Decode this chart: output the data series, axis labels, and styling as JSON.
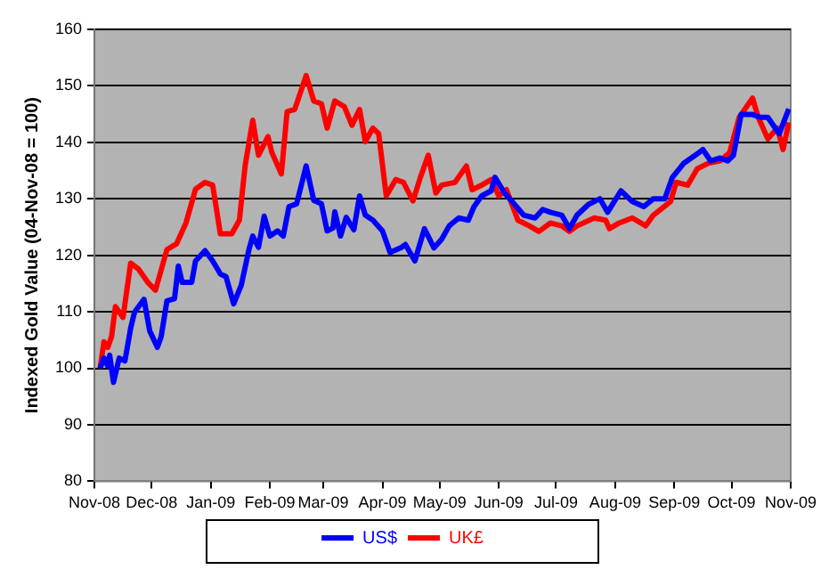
{
  "chart_data": {
    "type": "line",
    "ylabel": "Indexed Gold Value (04-Nov-08 = 100)",
    "xlim": [
      "2008-11-01",
      "2009-11-01"
    ],
    "xticks": [
      {
        "value": "2008-11-01",
        "label": "Nov-08"
      },
      {
        "value": "2008-12-01",
        "label": "Dec-08"
      },
      {
        "value": "2009-01-01",
        "label": "Jan-09"
      },
      {
        "value": "2009-02-01",
        "label": "Feb-09"
      },
      {
        "value": "2009-03-01",
        "label": "Mar-09"
      },
      {
        "value": "2009-04-01",
        "label": "Apr-09"
      },
      {
        "value": "2009-05-01",
        "label": "May-09"
      },
      {
        "value": "2009-06-01",
        "label": "Jun-09"
      },
      {
        "value": "2009-07-01",
        "label": "Jul-09"
      },
      {
        "value": "2009-08-01",
        "label": "Aug-09"
      },
      {
        "value": "2009-09-01",
        "label": "Sep-09"
      },
      {
        "value": "2009-10-01",
        "label": "Oct-09"
      },
      {
        "value": "2009-11-01",
        "label": "Nov-09"
      }
    ],
    "ylim": [
      80,
      160
    ],
    "yticks": [
      80,
      90,
      100,
      110,
      120,
      130,
      140,
      150,
      160
    ],
    "grid": "y",
    "legend": "bottom",
    "marker": "none",
    "line_style": "solid",
    "series": [
      {
        "name": "US$",
        "color": "#0000ff",
        "x": [
          "2008-11-04",
          "2008-11-06",
          "2008-11-08",
          "2008-11-09",
          "2008-11-11",
          "2008-11-14",
          "2008-11-17",
          "2008-11-20",
          "2008-11-22",
          "2008-11-27",
          "2008-11-30",
          "2008-12-04",
          "2008-12-06",
          "2008-12-09",
          "2008-12-13",
          "2008-12-15",
          "2008-12-17",
          "2008-12-22",
          "2008-12-24",
          "2008-12-29",
          "2009-01-02",
          "2009-01-06",
          "2009-01-09",
          "2009-01-13",
          "2009-01-17",
          "2009-01-21",
          "2009-01-23",
          "2009-01-26",
          "2009-01-29",
          "2009-02-01",
          "2009-02-05",
          "2009-02-08",
          "2009-02-11",
          "2009-02-15",
          "2009-02-20",
          "2009-02-24",
          "2009-02-28",
          "2009-03-03",
          "2009-03-06",
          "2009-03-07",
          "2009-03-10",
          "2009-03-13",
          "2009-03-17",
          "2009-03-20",
          "2009-03-23",
          "2009-03-27",
          "2009-04-01",
          "2009-04-05",
          "2009-04-11",
          "2009-04-13",
          "2009-04-18",
          "2009-04-23",
          "2009-04-28",
          "2009-05-02",
          "2009-05-06",
          "2009-05-11",
          "2009-05-16",
          "2009-05-19",
          "2009-05-23",
          "2009-05-28",
          "2009-05-30",
          "2009-06-04",
          "2009-06-08",
          "2009-06-14",
          "2009-06-20",
          "2009-06-24",
          "2009-06-28",
          "2009-07-04",
          "2009-07-08",
          "2009-07-12",
          "2009-07-18",
          "2009-07-24",
          "2009-07-28",
          "2009-08-04",
          "2009-08-10",
          "2009-08-16",
          "2009-08-21",
          "2009-08-27",
          "2009-08-31",
          "2009-09-06",
          "2009-09-12",
          "2009-09-16",
          "2009-09-20",
          "2009-09-25",
          "2009-09-29",
          "2009-10-02",
          "2009-10-06",
          "2009-10-12",
          "2009-10-16",
          "2009-10-20",
          "2009-10-26",
          "2009-10-31"
        ],
        "values": [
          100,
          101.8,
          100.4,
          102.3,
          97.5,
          101.8,
          101.3,
          107.1,
          109.9,
          112.2,
          106.6,
          103.7,
          105.6,
          111.9,
          112.3,
          118.1,
          115.2,
          115.2,
          119,
          120.8,
          119,
          116.7,
          116.2,
          111.4,
          114.7,
          121,
          123.4,
          121.4,
          126.9,
          123.4,
          124.3,
          123.4,
          128.6,
          129.1,
          135.8,
          129.7,
          129.1,
          124.3,
          124.8,
          127.7,
          123.4,
          126.7,
          124.5,
          130.5,
          127.1,
          126.2,
          124.3,
          120.5,
          121.4,
          121.9,
          119,
          124.7,
          121.3,
          122.8,
          125.2,
          126.6,
          126.2,
          128.6,
          130.5,
          131.4,
          133.8,
          131,
          129.5,
          127.1,
          126.6,
          128.1,
          127.6,
          127.1,
          124.7,
          127.1,
          129,
          130,
          127.6,
          131.4,
          129.5,
          128.6,
          130,
          130,
          133.8,
          136.3,
          137.7,
          138.7,
          136.7,
          137.2,
          136.7,
          137.7,
          144.9,
          144.9,
          144.4,
          144.4,
          141.5,
          145.9
        ]
      },
      {
        "name": "UK£",
        "color": "#ff0000",
        "x": [
          "2008-11-04",
          "2008-11-06",
          "2008-11-08",
          "2008-11-10",
          "2008-11-12",
          "2008-11-16",
          "2008-11-20",
          "2008-11-24",
          "2008-11-29",
          "2008-12-03",
          "2008-12-09",
          "2008-12-14",
          "2008-12-19",
          "2008-12-24",
          "2008-12-29",
          "2009-01-02",
          "2009-01-06",
          "2009-01-12",
          "2009-01-16",
          "2009-01-19",
          "2009-01-23",
          "2009-01-26",
          "2009-01-31",
          "2009-02-02",
          "2009-02-07",
          "2009-02-10",
          "2009-02-14",
          "2009-02-20",
          "2009-02-24",
          "2009-02-28",
          "2009-03-03",
          "2009-03-07",
          "2009-03-12",
          "2009-03-16",
          "2009-03-20",
          "2009-03-23",
          "2009-03-27",
          "2009-03-30",
          "2009-04-03",
          "2009-04-08",
          "2009-04-12",
          "2009-04-17",
          "2009-04-21",
          "2009-04-25",
          "2009-04-29",
          "2009-05-02",
          "2009-05-09",
          "2009-05-15",
          "2009-05-18",
          "2009-05-23",
          "2009-05-28",
          "2009-06-01",
          "2009-06-05",
          "2009-06-11",
          "2009-06-17",
          "2009-06-22",
          "2009-06-28",
          "2009-07-04",
          "2009-07-08",
          "2009-07-12",
          "2009-07-21",
          "2009-07-27",
          "2009-07-29",
          "2009-08-03",
          "2009-08-10",
          "2009-08-17",
          "2009-08-21",
          "2009-08-30",
          "2009-09-02",
          "2009-09-08",
          "2009-09-13",
          "2009-09-19",
          "2009-09-25",
          "2009-09-30",
          "2009-10-05",
          "2009-10-12",
          "2009-10-15",
          "2009-10-20",
          "2009-10-25",
          "2009-10-28",
          "2009-10-31"
        ],
        "values": [
          100,
          104.7,
          103.7,
          105.6,
          110.9,
          109,
          118.6,
          117.6,
          115.2,
          113.8,
          121,
          122,
          125.7,
          131.7,
          132.9,
          132.4,
          123.8,
          123.8,
          126.2,
          135.8,
          143.9,
          137.7,
          141,
          138.2,
          134.4,
          145.4,
          145.8,
          151.8,
          147.3,
          146.8,
          142.5,
          147.3,
          146.3,
          143,
          145.8,
          140.1,
          142.5,
          141.5,
          130.5,
          133.4,
          132.9,
          129.6,
          133.9,
          137.7,
          131,
          132.4,
          132.9,
          135.8,
          131.6,
          132.4,
          133.4,
          130.5,
          131.6,
          126.2,
          125.2,
          124.2,
          125.7,
          125.2,
          124.2,
          125.2,
          126.6,
          126.2,
          124.7,
          125.7,
          126.6,
          125.2,
          127.1,
          129.5,
          132.9,
          132.4,
          135.3,
          136.3,
          136.7,
          138.2,
          144.4,
          147.8,
          144.4,
          140.6,
          142.5,
          138.7,
          143.5
        ]
      }
    ]
  }
}
